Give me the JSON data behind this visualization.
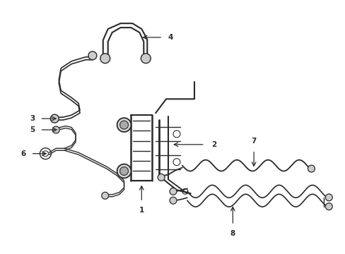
{
  "bg_color": "#ffffff",
  "line_color": "#2a2a2a",
  "label_color": "#000000",
  "figsize": [
    4.89,
    3.6
  ],
  "dpi": 100,
  "lw_pipe": 1.4,
  "lw_thin": 0.9
}
